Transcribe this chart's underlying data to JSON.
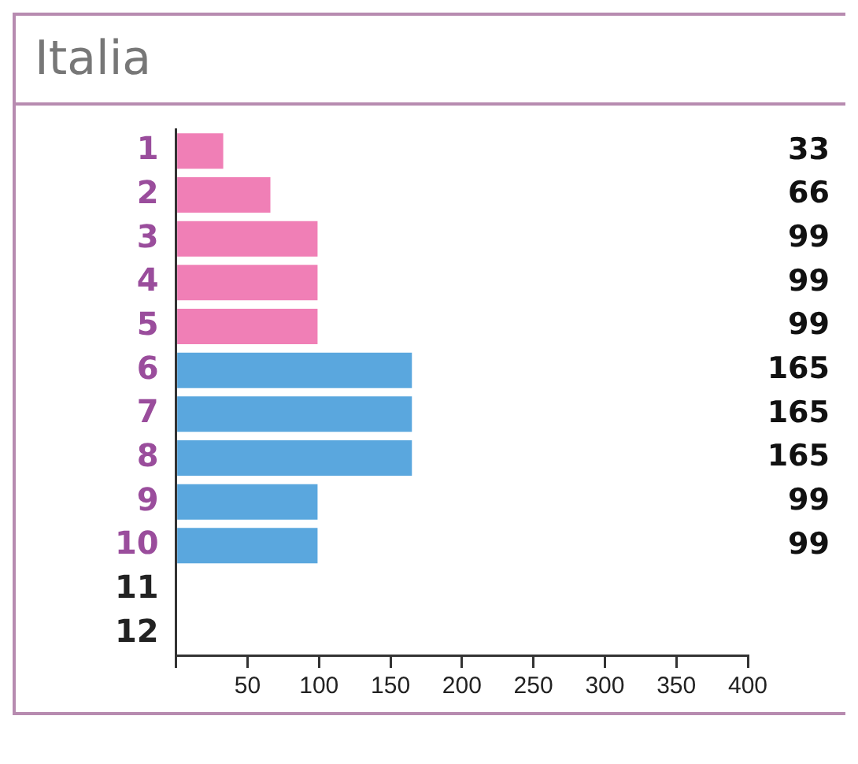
{
  "chart_data": {
    "type": "bar",
    "orientation": "horizontal",
    "title": "Italia",
    "categories": [
      "1",
      "2",
      "3",
      "4",
      "5",
      "6",
      "7",
      "8",
      "9",
      "10",
      "11",
      "12"
    ],
    "values": [
      33,
      66,
      99,
      99,
      99,
      165,
      165,
      165,
      99,
      99,
      null,
      null
    ],
    "colors": [
      "#f07fb6",
      "#f07fb6",
      "#f07fb6",
      "#f07fb6",
      "#f07fb6",
      "#5aa7de",
      "#5aa7de",
      "#5aa7de",
      "#5aa7de",
      "#5aa7de",
      "#5aa7de",
      "#5aa7de"
    ],
    "xlim": [
      0,
      400
    ],
    "xticks": [
      {
        "value": 0,
        "label": null
      },
      50,
      100,
      150,
      200,
      250,
      300,
      350,
      400
    ],
    "data_labels": true,
    "grid": false,
    "legend": false
  }
}
